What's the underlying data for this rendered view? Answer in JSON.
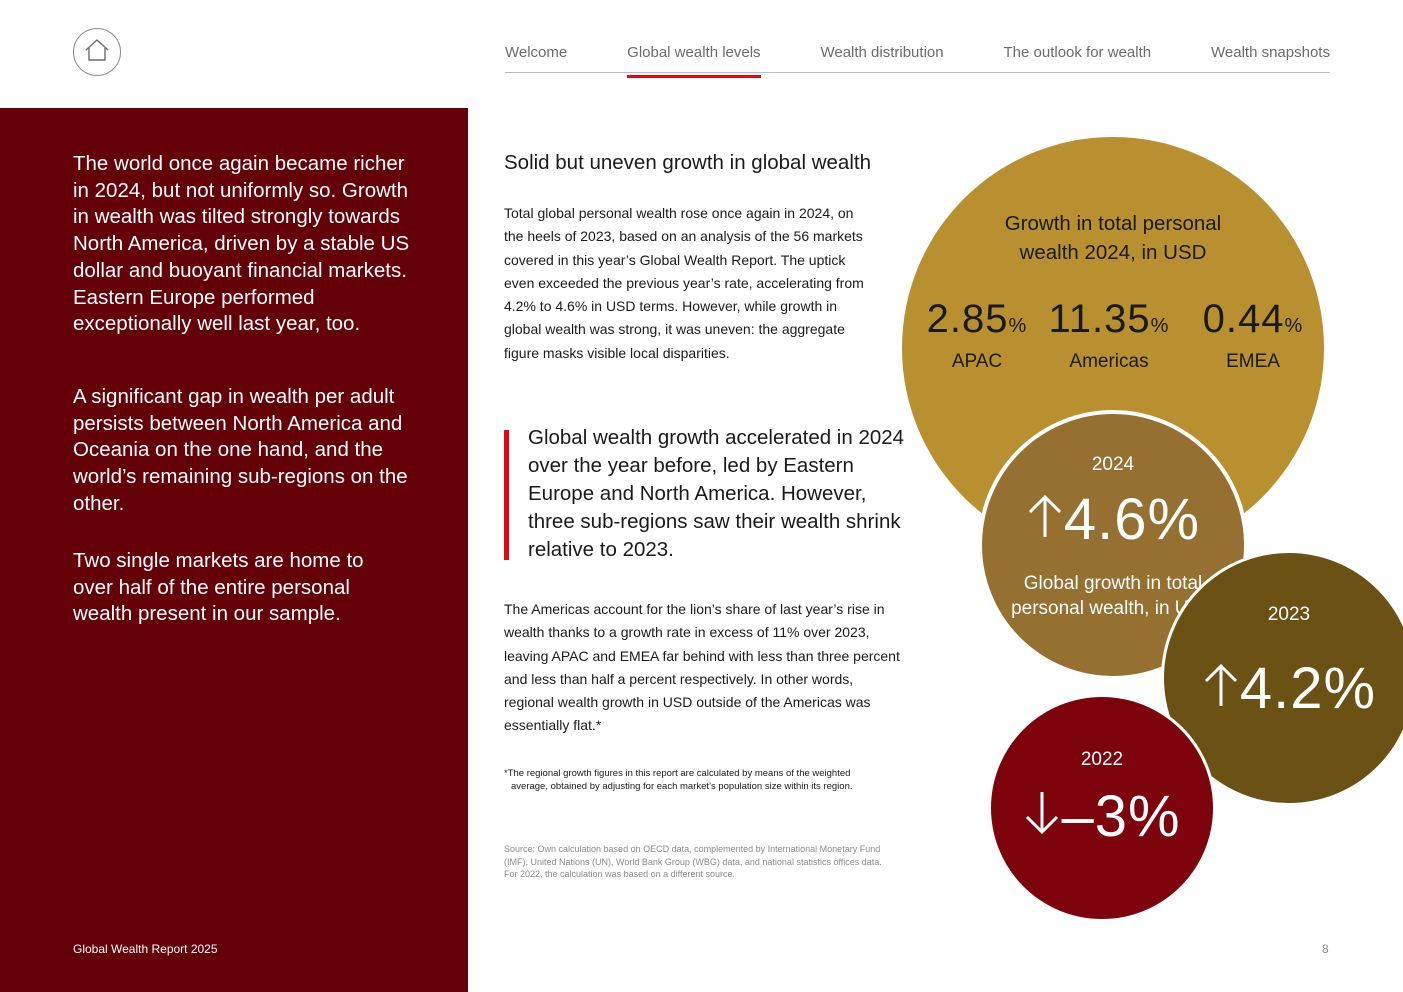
{
  "nav": {
    "items": [
      "Welcome",
      "Global wealth levels",
      "Wealth distribution",
      "The outlook for wealth",
      "Wealth snapshots"
    ],
    "active_index": 1,
    "accent_color": "#e30613"
  },
  "icons": {
    "home": "home-icon",
    "up": "arrow-up-icon",
    "down": "arrow-down-icon"
  },
  "sidebar": {
    "background": "#640007",
    "paragraphs": [
      "The world once again became richer in 2024, but not uniformly so. Growth in wealth was tilted strongly towards North America, driven by a stable US dollar and buoyant financial markets. Eastern Europe performed exceptionally well last year, too.",
      "A significant gap in wealth per adult persists between North America and Oceania on the one hand, and the world’s remaining sub-regions on the other.",
      "Two single markets are home to over half of the entire personal wealth present in our sample."
    ],
    "footer": "Global Wealth Report 2025"
  },
  "main": {
    "heading": "Solid but uneven growth in global wealth",
    "intro": "Total global personal wealth rose once again in 2024, on the heels of 2023, based on an analysis of the 56 markets covered in this year’s Global Wealth Report. The uptick even exceeded the previous year’s rate, accelerating from 4.2% to 4.6% in USD terms. However, while growth in global wealth was strong, it was uneven: the aggregate figure masks visible local disparities.",
    "quote": "Global wealth growth accelerated in 2024 over the year before, led by Eastern Europe and North America. However, three sub-regions saw their wealth shrink relative to 2023.",
    "body": "The Americas account for the lion’s share of last year’s rise in wealth thanks to a growth rate in excess of 11% over 2023, leaving APAC and EMEA far behind with less than three percent and less than half a percent respectively. In other words, regional wealth growth in USD outside of the Americas was essentially flat.*",
    "footnote_marker": "*",
    "footnote": "The regional growth figures in this report are calculated by means of the weighted average, obtained by adjusting for each market’s population size within its region.",
    "source": "Source: Own calculation based on OECD data, complemented by International Monetary Fund (IMF), United Nations (UN), World Bank Group (WBG) data, and national statistics offices data. For 2022, the calculation was based on a different source."
  },
  "infographic": {
    "regional": {
      "title": "Growth in total personal wealth 2024, in USD",
      "unit": "%",
      "stats": [
        {
          "value": "2.85",
          "label": "APAC"
        },
        {
          "value": "11.35",
          "label": "Americas"
        },
        {
          "value": "0.44",
          "label": "EMEA"
        }
      ],
      "color": "#b8902f"
    },
    "global_2024": {
      "year": "2024",
      "value": "4.6%",
      "direction": "up",
      "caption": "Global growth in total personal wealth, in USD",
      "color": "#957030"
    },
    "global_2023": {
      "year": "2023",
      "value": "4.2%",
      "direction": "up",
      "color": "#6b5113"
    },
    "global_2022": {
      "year": "2022",
      "value": "–3%",
      "direction": "down",
      "color": "#7d030c"
    }
  },
  "page_number": "8"
}
